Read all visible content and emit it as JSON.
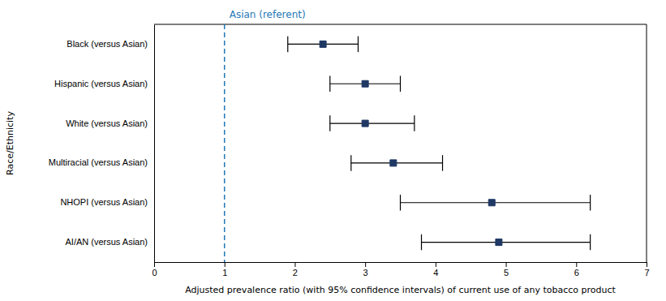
{
  "chart_data": {
    "type": "forest",
    "categories": [
      "Black (versus Asian)",
      "Hispanic (versus Asian)",
      "White (versus Asian)",
      "Multiracial (versus Asian)",
      "NHOPI (versus Asian)",
      "AI/AN (versus Asian)"
    ],
    "values": [
      2.4,
      3.0,
      3.0,
      3.4,
      4.8,
      4.9
    ],
    "ci_lower": [
      1.9,
      2.5,
      2.5,
      2.8,
      3.5,
      3.8
    ],
    "ci_upper": [
      2.9,
      3.5,
      3.7,
      4.1,
      6.2,
      6.2
    ],
    "reference_line": {
      "value": 1.0,
      "label": "Asian (referent)"
    },
    "xlim": [
      0,
      7
    ],
    "xticks": [
      0,
      1,
      2,
      3,
      4,
      5,
      6,
      7
    ],
    "xlabel": "Adjusted prevalence ratio (with 95% confidence intervals) of current use of any tobacco product",
    "ylabel": "Race/Ethnicity",
    "orientation": "horizontal",
    "color": "#1F3864",
    "marker": "square",
    "grid": false
  }
}
